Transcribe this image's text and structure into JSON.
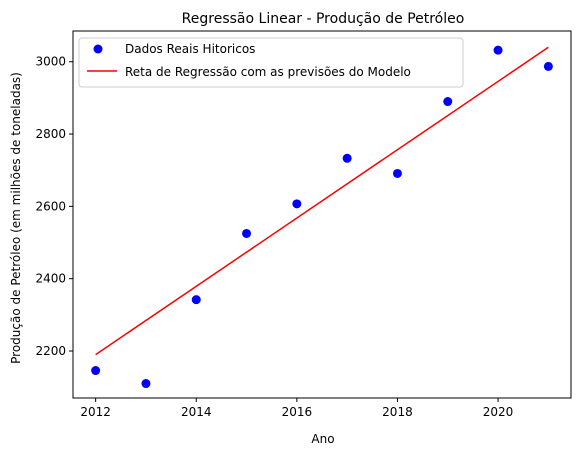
{
  "chart_data": {
    "type": "scatter",
    "title": "Regressão Linear - Produção de Petróleo",
    "xlabel": "Ano",
    "ylabel": "Produção de Petróleo (em milhões de toneladas)",
    "xlim": [
      2011.55,
      2021.45
    ],
    "ylim": [
      2070,
      3085
    ],
    "xticks": [
      2012,
      2014,
      2016,
      2018,
      2020
    ],
    "yticks": [
      2200,
      2400,
      2600,
      2800,
      3000
    ],
    "grid": false,
    "legend_position": "upper left",
    "series": [
      {
        "name": "Dados Reais Hitoricos",
        "kind": "scatter",
        "color": "#0000ff",
        "x": [
          2012,
          2013,
          2014,
          2015,
          2016,
          2017,
          2018,
          2019,
          2020,
          2021
        ],
        "y": [
          2146,
          2110,
          2342,
          2525,
          2607,
          2733,
          2691,
          2890,
          3032,
          2987
        ]
      },
      {
        "name": "Reta de Regressão com as previsões do Modelo",
        "kind": "line",
        "color": "#ff0000",
        "x": [
          2012,
          2021
        ],
        "y": [
          2190,
          3040
        ]
      }
    ]
  }
}
